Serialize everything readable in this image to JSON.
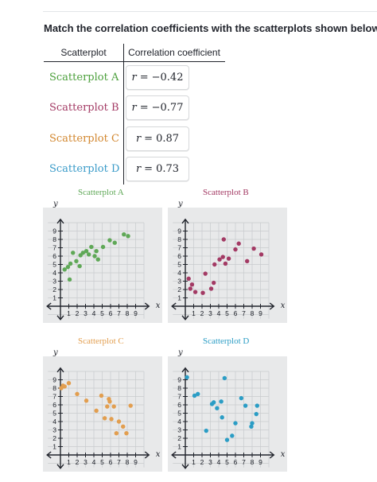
{
  "instruction": "Match the correlation coefficients with the scatterplots shown below.",
  "table": {
    "header_scatterplot": "Scatterplot",
    "header_coefficient": "Correlation coefficient",
    "rows": [
      {
        "name": "Scatterplot A",
        "color": "#4b9f3b",
        "value": "−0.42"
      },
      {
        "name": "Scatterplot B",
        "color": "#a33a64",
        "value": "−0.77"
      },
      {
        "name": "Scatterplot C",
        "color": "#d2872f",
        "value": "0.87"
      },
      {
        "name": "Scatterplot D",
        "color": "#3a9bc9",
        "value": "0.73"
      }
    ],
    "variable": "r",
    "equals": "="
  },
  "axis": {
    "x_label": "x",
    "y_label": "y",
    "x_ticks": [
      "1",
      "2",
      "3",
      "4",
      "5",
      "6",
      "7",
      "8",
      "9"
    ],
    "y_ticks": [
      "1",
      "2",
      "3",
      "4",
      "5",
      "6",
      "7",
      "8",
      "9"
    ]
  },
  "charts": [
    {
      "title": "Scatterplot A",
      "color": "#5fa857",
      "points": [
        [
          0.5,
          4.4
        ],
        [
          0.9,
          4.7
        ],
        [
          1.1,
          3.2
        ],
        [
          1.2,
          5.1
        ],
        [
          1.5,
          6.4
        ],
        [
          1.9,
          5.4
        ],
        [
          2.3,
          4.8
        ],
        [
          2.4,
          6.1
        ],
        [
          2.7,
          6.4
        ],
        [
          3.1,
          6.6
        ],
        [
          3.4,
          6.2
        ],
        [
          3.7,
          7.1
        ],
        [
          4.1,
          6.0
        ],
        [
          4.3,
          6.6
        ],
        [
          4.5,
          5.6
        ],
        [
          5.1,
          7.1
        ],
        [
          5.9,
          7.9
        ],
        [
          6.5,
          7.6
        ],
        [
          7.6,
          8.6
        ],
        [
          8.1,
          8.4
        ]
      ]
    },
    {
      "title": "Scatterplot B",
      "color": "#a33a64",
      "points": [
        [
          0.4,
          3.3
        ],
        [
          0.6,
          2.1
        ],
        [
          0.8,
          2.6
        ],
        [
          1.2,
          1.7
        ],
        [
          2.1,
          1.6
        ],
        [
          2.4,
          3.9
        ],
        [
          3.1,
          2.1
        ],
        [
          3.4,
          2.8
        ],
        [
          3.5,
          5.0
        ],
        [
          4.1,
          5.6
        ],
        [
          4.5,
          5.9
        ],
        [
          4.6,
          8.0
        ],
        [
          4.8,
          5.1
        ],
        [
          5.2,
          5.7
        ],
        [
          6.0,
          6.8
        ],
        [
          6.4,
          7.5
        ],
        [
          7.4,
          5.4
        ],
        [
          8.2,
          6.9
        ],
        [
          9.1,
          6.2
        ]
      ]
    },
    {
      "title": "Scatterplot C",
      "color": "#e29e4f",
      "points": [
        [
          0.1,
          8.0
        ],
        [
          0.3,
          8.3
        ],
        [
          0.5,
          8.2
        ],
        [
          1.0,
          8.6
        ],
        [
          2.0,
          7.3
        ],
        [
          3.1,
          6.5
        ],
        [
          4.3,
          5.3
        ],
        [
          4.9,
          7.1
        ],
        [
          5.3,
          4.4
        ],
        [
          5.6,
          5.8
        ],
        [
          5.8,
          6.7
        ],
        [
          5.9,
          6.4
        ],
        [
          6.1,
          4.3
        ],
        [
          6.4,
          5.8
        ],
        [
          6.7,
          2.6
        ],
        [
          7.0,
          4.0
        ],
        [
          7.5,
          3.4
        ],
        [
          7.9,
          2.6
        ],
        [
          8.4,
          5.9
        ]
      ]
    },
    {
      "title": "Scatterplot D",
      "color": "#2b9dc5",
      "points": [
        [
          0.2,
          9.3
        ],
        [
          1.1,
          7.1
        ],
        [
          1.5,
          7.3
        ],
        [
          2.5,
          2.9
        ],
        [
          3.2,
          6.1
        ],
        [
          3.4,
          6.3
        ],
        [
          3.8,
          5.6
        ],
        [
          4.3,
          6.4
        ],
        [
          4.4,
          4.5
        ],
        [
          4.7,
          9.2
        ],
        [
          5.0,
          1.8
        ],
        [
          5.6,
          2.3
        ],
        [
          6.0,
          3.8
        ],
        [
          6.7,
          6.8
        ],
        [
          7.2,
          5.9
        ],
        [
          7.9,
          3.4
        ],
        [
          8.0,
          3.8
        ],
        [
          8.5,
          4.9
        ],
        [
          8.6,
          5.9
        ]
      ]
    }
  ]
}
